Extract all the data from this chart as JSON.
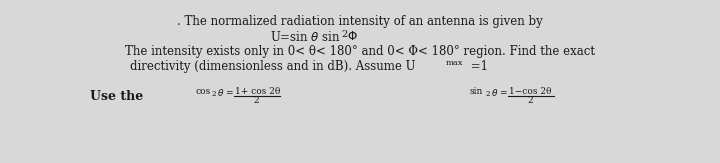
{
  "background_color": "#d8d8d8",
  "line1": ". The normalized radiation intensity of an antenna is given by",
  "line2": "U=sin θ sin² Φ",
  "line3": "The intensity exists only in 0< θ< 180° and 0< Φ< 180° region. Find the exact",
  "line4": "directivity (dimensionless and in dB). Assume U",
  "line4_sub": "max",
  "line4_end": " =1",
  "use_the": "Use the",
  "formula1_lhs": "cos²θ =",
  "formula1_num": "1+ cos 2θ",
  "formula1_den": "2",
  "formula2_lhs": "sin²θ =",
  "formula2_num": "1−cos 2θ",
  "formula2_den": "2",
  "main_fontsize": 8.5,
  "formula_fontsize": 7.5,
  "small_fontsize": 6.0,
  "text_color": "#1a1a1a",
  "fig_width": 7.2,
  "fig_height": 1.63,
  "dpi": 100
}
